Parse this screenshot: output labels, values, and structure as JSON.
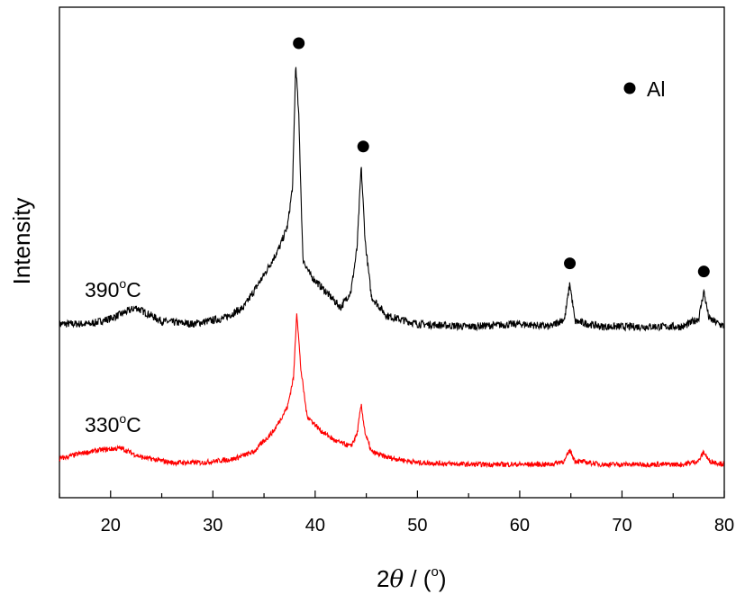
{
  "chart_data": {
    "type": "line",
    "title": "",
    "xlabel_prefix": "2",
    "xlabel_theta": "θ",
    "xlabel_suffix": " / (",
    "xlabel_degree": "o",
    "xlabel_close": ")",
    "ylabel": "Intensity",
    "xlim": [
      15,
      80
    ],
    "x_ticks": [
      20,
      30,
      40,
      50,
      60,
      70,
      80
    ],
    "y_ticks_shown": false,
    "grid": false,
    "legend": {
      "label": "Al",
      "marker": "filled-circle",
      "placement": "top-right"
    },
    "series": [
      {
        "label_number": "390",
        "label_degree": "o",
        "label_unit": "C",
        "color": "#000000",
        "points": [
          [
            15,
            0.04
          ],
          [
            18,
            0.04
          ],
          [
            20,
            0.06
          ],
          [
            22.5,
            0.1
          ],
          [
            25,
            0.05
          ],
          [
            28,
            0.04
          ],
          [
            31,
            0.06
          ],
          [
            33,
            0.1
          ],
          [
            35,
            0.22
          ],
          [
            36.5,
            0.32
          ],
          [
            37.3,
            0.4
          ],
          [
            37.8,
            0.55
          ],
          [
            38.1,
            1.0
          ],
          [
            38.4,
            0.8
          ],
          [
            38.8,
            0.28
          ],
          [
            39.5,
            0.22
          ],
          [
            41,
            0.16
          ],
          [
            42.5,
            0.1
          ],
          [
            43.5,
            0.16
          ],
          [
            44.1,
            0.32
          ],
          [
            44.5,
            0.62
          ],
          [
            44.9,
            0.34
          ],
          [
            45.5,
            0.14
          ],
          [
            47,
            0.07
          ],
          [
            50,
            0.04
          ],
          [
            55,
            0.03
          ],
          [
            60,
            0.04
          ],
          [
            63,
            0.03
          ],
          [
            64.4,
            0.06
          ],
          [
            64.9,
            0.19
          ],
          [
            65.4,
            0.05
          ],
          [
            68,
            0.03
          ],
          [
            72,
            0.03
          ],
          [
            76,
            0.03
          ],
          [
            77.5,
            0.06
          ],
          [
            78.0,
            0.16
          ],
          [
            78.5,
            0.06
          ],
          [
            80,
            0.03
          ]
        ]
      },
      {
        "label_number": "330",
        "label_degree": "o",
        "label_unit": "C",
        "color": "#ff0000",
        "points": [
          [
            15,
            0.06
          ],
          [
            17,
            0.09
          ],
          [
            19,
            0.11
          ],
          [
            21,
            0.12
          ],
          [
            23,
            0.07
          ],
          [
            26,
            0.04
          ],
          [
            29,
            0.04
          ],
          [
            32,
            0.06
          ],
          [
            34,
            0.1
          ],
          [
            36,
            0.22
          ],
          [
            37.3,
            0.35
          ],
          [
            37.9,
            0.52
          ],
          [
            38.2,
            0.88
          ],
          [
            38.6,
            0.56
          ],
          [
            39.2,
            0.3
          ],
          [
            40.5,
            0.22
          ],
          [
            42,
            0.16
          ],
          [
            43.5,
            0.13
          ],
          [
            44.1,
            0.2
          ],
          [
            44.5,
            0.36
          ],
          [
            44.9,
            0.2
          ],
          [
            45.5,
            0.1
          ],
          [
            47,
            0.07
          ],
          [
            50,
            0.04
          ],
          [
            55,
            0.03
          ],
          [
            60,
            0.03
          ],
          [
            63,
            0.03
          ],
          [
            64.4,
            0.05
          ],
          [
            64.9,
            0.11
          ],
          [
            65.4,
            0.05
          ],
          [
            68,
            0.03
          ],
          [
            72,
            0.03
          ],
          [
            76,
            0.03
          ],
          [
            77.5,
            0.05
          ],
          [
            78.0,
            0.1
          ],
          [
            78.5,
            0.05
          ],
          [
            80,
            0.03
          ]
        ]
      }
    ],
    "peak_markers_x": [
      38.4,
      44.7,
      64.9,
      78.0
    ]
  }
}
